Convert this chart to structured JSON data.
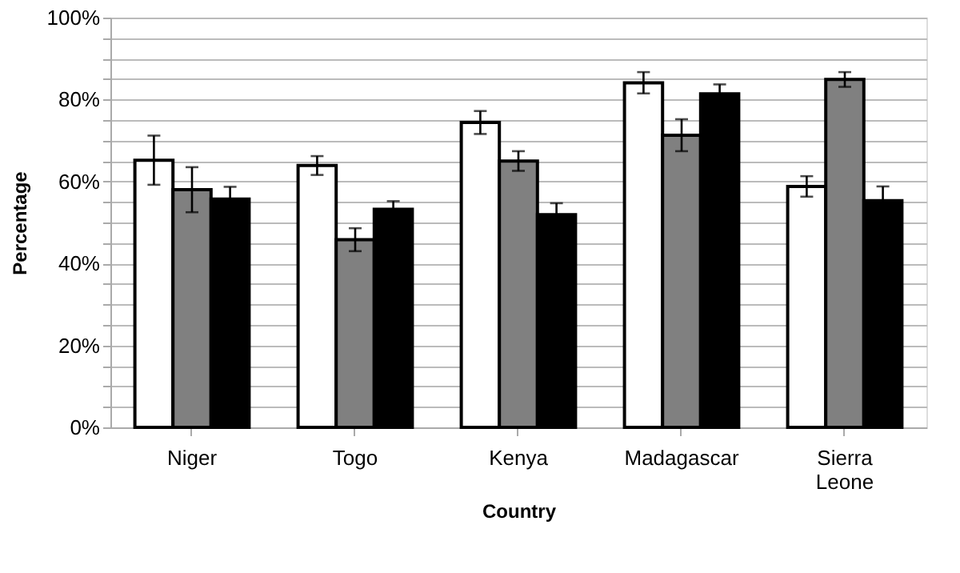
{
  "chart_data": {
    "type": "bar",
    "xlabel": "Country",
    "ylabel": "Percentage",
    "categories": [
      "Niger",
      "Togo",
      "Kenya",
      "Madagascar",
      "Sierra Leone"
    ],
    "series": [
      {
        "color": "#ffffff",
        "values": [
          65.2,
          63.9,
          74.4,
          84.1,
          58.8
        ],
        "errors": [
          6.0,
          2.3,
          2.8,
          2.6,
          2.5
        ]
      },
      {
        "color": "#808080",
        "values": [
          58.0,
          45.8,
          65.0,
          71.3,
          84.9
        ],
        "errors": [
          5.5,
          2.8,
          2.4,
          3.9,
          1.8
        ]
      },
      {
        "color": "#000000",
        "values": [
          55.7,
          53.2,
          51.9,
          81.4,
          55.3
        ],
        "errors": [
          3.0,
          2.0,
          2.8,
          2.3,
          3.5
        ]
      }
    ],
    "ylim": [
      0,
      100
    ],
    "yticks": [
      {
        "value": 0,
        "label": "0%"
      },
      {
        "value": 5,
        "label": null
      },
      {
        "value": 10,
        "label": null
      },
      {
        "value": 15,
        "label": null
      },
      {
        "value": 20,
        "label": "20%"
      },
      {
        "value": 25,
        "label": null
      },
      {
        "value": 30,
        "label": null
      },
      {
        "value": 35,
        "label": null
      },
      {
        "value": 40,
        "label": "40%"
      },
      {
        "value": 45,
        "label": null
      },
      {
        "value": 50,
        "label": null
      },
      {
        "value": 55,
        "label": null
      },
      {
        "value": 60,
        "label": "60%"
      },
      {
        "value": 65,
        "label": null
      },
      {
        "value": 70,
        "label": null
      },
      {
        "value": 75,
        "label": null
      },
      {
        "value": 80,
        "label": "80%"
      },
      {
        "value": 85,
        "label": null
      },
      {
        "value": 90,
        "label": null
      },
      {
        "value": 95,
        "label": null
      },
      {
        "value": 100,
        "label": "100%"
      }
    ],
    "grid": "y",
    "legend": false
  }
}
